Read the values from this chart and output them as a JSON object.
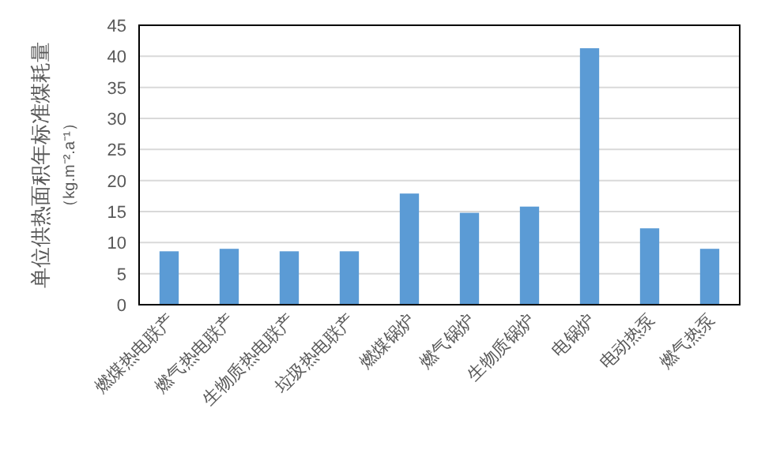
{
  "chart_data": {
    "type": "bar",
    "ylabel": "单位供热面积年标准煤耗量",
    "annotations": [
      "（kg.m⁻².a⁻¹）"
    ],
    "categories": [
      "燃煤热电联产",
      "燃气热电联产",
      "生物质热电联产",
      "垃圾热电联产",
      "燃煤锅炉",
      "燃气锅炉",
      "生物质锅炉",
      "电锅炉",
      "电动热泵",
      "燃气热泵"
    ],
    "values": [
      8.6,
      9.0,
      8.6,
      8.6,
      17.9,
      14.8,
      15.8,
      41.3,
      12.3,
      9.0
    ],
    "color": "#5b9bd5",
    "ylim": [
      0,
      45
    ],
    "yticks": [
      0,
      5,
      10,
      15,
      20,
      25,
      30,
      35,
      40,
      45
    ],
    "grid": "y"
  }
}
